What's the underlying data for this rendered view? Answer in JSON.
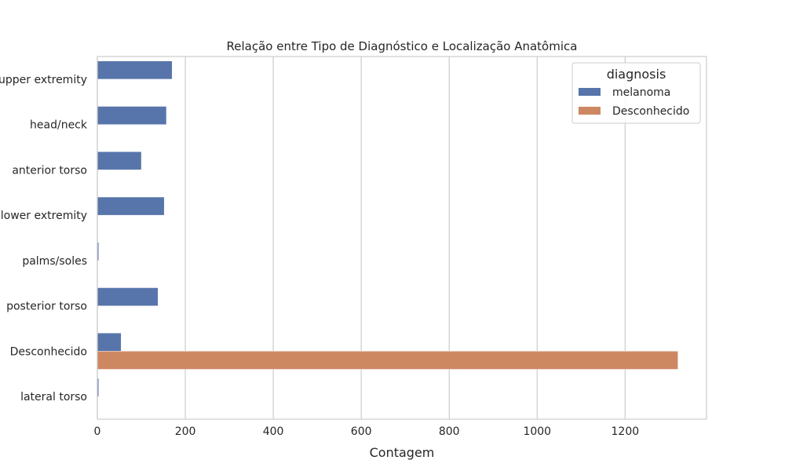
{
  "chart_data": {
    "type": "bar",
    "orientation": "horizontal",
    "title": "Relação entre Tipo de Diagnóstico e Localização Anatômica",
    "xlabel": "Contagem",
    "ylabel": "",
    "xlim": [
      0,
      1385
    ],
    "xticks": [
      0,
      200,
      400,
      600,
      800,
      1000,
      1200
    ],
    "categories": [
      "upper extremity",
      "head/neck",
      "anterior torso",
      "lower extremity",
      "palms/soles",
      "posterior torso",
      "Desconhecido",
      "lateral torso"
    ],
    "legend": {
      "title": "diagnosis",
      "position": "top-right"
    },
    "grid": "x",
    "series": [
      {
        "name": "melanoma",
        "color": "#5875ab",
        "values": [
          170,
          157,
          100,
          152,
          3,
          138,
          54,
          3
        ]
      },
      {
        "name": "Desconhecido",
        "color": "#cd8862",
        "values": [
          0,
          0,
          0,
          0,
          0,
          0,
          1320,
          0
        ]
      }
    ]
  }
}
